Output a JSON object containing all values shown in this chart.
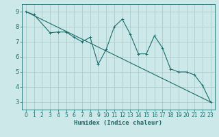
{
  "title": "",
  "xlabel": "Humidex (Indice chaleur)",
  "ylabel": "",
  "background_color": "#cce8e8",
  "grid_color": "#aacccc",
  "line_color": "#1a6b6b",
  "xlim": [
    -0.5,
    23.5
  ],
  "ylim": [
    2.5,
    9.5
  ],
  "xticks": [
    0,
    1,
    2,
    3,
    4,
    5,
    6,
    7,
    8,
    9,
    10,
    11,
    12,
    13,
    14,
    15,
    16,
    17,
    18,
    19,
    20,
    21,
    22,
    23
  ],
  "yticks": [
    3,
    4,
    5,
    6,
    7,
    8,
    9
  ],
  "line1_x": [
    0,
    1,
    3,
    4,
    5,
    6,
    7,
    8,
    9,
    10,
    11,
    12,
    13,
    14,
    15,
    16,
    17,
    18,
    19,
    20,
    21,
    22,
    23
  ],
  "line1_y": [
    9.0,
    8.8,
    7.6,
    7.65,
    7.65,
    7.3,
    7.0,
    7.3,
    5.5,
    6.5,
    8.0,
    8.5,
    7.5,
    6.2,
    6.2,
    7.4,
    6.6,
    5.2,
    5.0,
    5.0,
    4.8,
    4.1,
    3.0
  ],
  "line2_x": [
    0,
    23
  ],
  "line2_y": [
    9.0,
    3.0
  ],
  "tick_fontsize": 5.5,
  "xlabel_fontsize": 6.5
}
